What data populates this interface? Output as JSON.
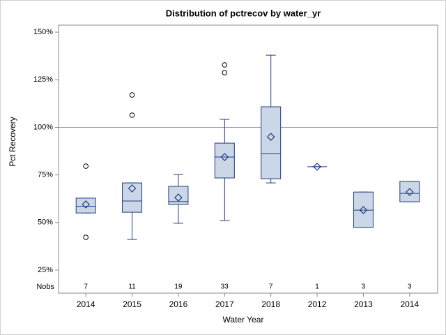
{
  "chart_data": {
    "type": "box",
    "title": "Distribution of pctrecov by water_yr",
    "x_label": "Water Year",
    "y_label": "Pct Recovery",
    "categories": [
      "2014",
      "2015",
      "2016",
      "2017",
      "2018",
      "2012",
      "2013",
      "2014"
    ],
    "nobs_label": "Nobs",
    "nobs": [
      7,
      11,
      19,
      33,
      7,
      1,
      3,
      3
    ],
    "boxes": [
      {
        "min": 55,
        "q1": 55,
        "median": 58.5,
        "q3": 62.8,
        "max": 62.8,
        "mean": 59.5,
        "outliers": [
          79.6,
          42.2
        ]
      },
      {
        "min": 41.1,
        "q1": 55.4,
        "median": 61.3,
        "q3": 70.8,
        "max": 70.8,
        "mean": 67.9,
        "outliers": [
          117,
          106.4
        ]
      },
      {
        "min": 49.6,
        "q1": 59.5,
        "median": 61,
        "q3": 69,
        "max": 75.2,
        "mean": 63.1,
        "outliers": []
      },
      {
        "min": 51,
        "q1": 73.4,
        "median": 84.4,
        "q3": 91.7,
        "max": 104.2,
        "mean": 84.4,
        "outliers": [
          132.8,
          128.7
        ]
      },
      {
        "min": 70.8,
        "q1": 73,
        "median": 86.2,
        "q3": 110.8,
        "max": 137.9,
        "mean": 95,
        "outliers": []
      },
      {
        "min": 79.3,
        "q1": 79.3,
        "median": 79.3,
        "q3": 79.3,
        "max": 79.3,
        "mean": 79.3,
        "outliers": []
      },
      {
        "min": 47.4,
        "q1": 47.4,
        "median": 56.5,
        "q3": 66,
        "max": 66,
        "mean": 56.5,
        "outliers": []
      },
      {
        "min": 60.9,
        "q1": 60.9,
        "median": 65.3,
        "q3": 71.6,
        "max": 71.6,
        "mean": 66,
        "outliers": []
      }
    ],
    "box_fill": "#cbd6e6",
    "box_color": "#1f3c88",
    "outlier_color": "#000000",
    "reference_line": 100,
    "ylim": [
      12.9,
      153.7
    ],
    "yticks": [
      {
        "value": 25,
        "label": "25%"
      },
      {
        "value": 50,
        "label": "50%"
      },
      {
        "value": 75,
        "label": "75%"
      },
      {
        "value": 100,
        "label": "100%"
      },
      {
        "value": 125,
        "label": "125%"
      },
      {
        "value": 150,
        "label": "150%"
      }
    ]
  }
}
